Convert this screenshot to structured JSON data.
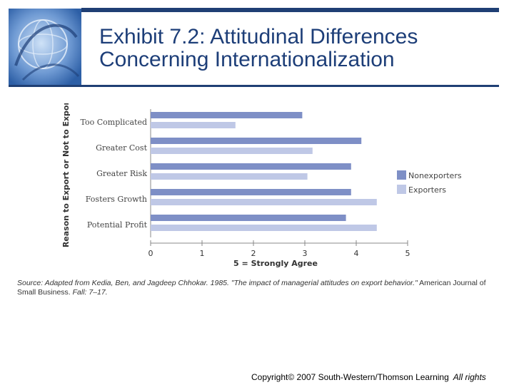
{
  "header": {
    "title_line1": "Exhibit 7.2: Attitudinal Differences",
    "title_line2": "Concerning Internationalization",
    "logo_icon": "globe-swirl-icon"
  },
  "colors": {
    "accent": "#1f3f74",
    "title": "#1d3e78",
    "nonexporters": "#7e8fc6",
    "exporters": "#bfc8e6"
  },
  "chart_data": {
    "type": "bar",
    "orientation": "horizontal",
    "categories": [
      "Too Complicated",
      "Greater Cost",
      "Greater Risk",
      "Fosters Growth",
      "Potential Profit"
    ],
    "series": [
      {
        "name": "Nonexporters",
        "values": [
          2.95,
          4.1,
          3.9,
          3.9,
          3.8
        ]
      },
      {
        "name": "Exporters",
        "values": [
          1.65,
          3.15,
          3.05,
          4.4,
          4.4
        ]
      }
    ],
    "xlabel": "5 = Strongly Agree",
    "ylabel": "Reason to Export or Not to Export",
    "xlim": [
      0,
      5
    ],
    "xticks": [
      "0",
      "1",
      "2",
      "3",
      "4",
      "5"
    ],
    "grid": false,
    "legend_position": "right"
  },
  "source": {
    "prefix": "Source: Adapted from Kedia, Ben, and Jagdeep Chhokar. 1985. \"The impact of managerial attitudes on export behavior.\"",
    "journal": "American Journal of Small Business.",
    "suffix": "Fall: 7–17."
  },
  "footer": {
    "copyright": "Copyright© 2007 South-Western/Thomson Learning",
    "rights": "All rights"
  }
}
